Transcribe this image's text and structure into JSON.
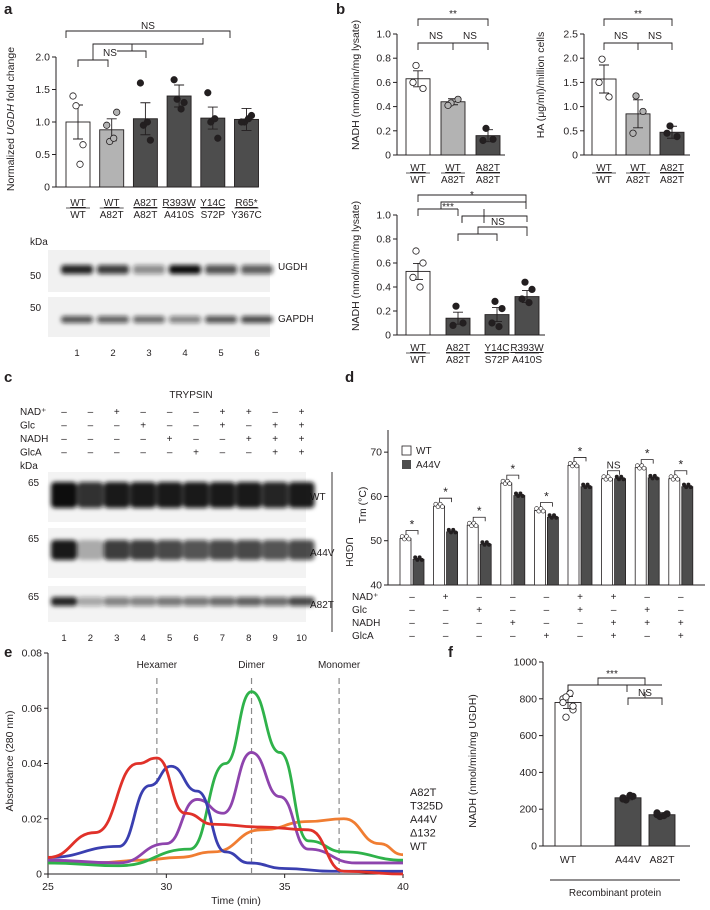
{
  "panel_labels": {
    "a": "a",
    "b": "b",
    "c": "c",
    "d": "d",
    "e": "e",
    "f": "f"
  },
  "sig": {
    "ns": "NS",
    "one": "*",
    "two": "**",
    "three": "***"
  },
  "colors": {
    "white_bar": "#ffffff",
    "wt_a82t_bar": "#b3b3b3",
    "dark_bar": "#4d4d4d",
    "A82T": "#f07d32",
    "T325D": "#2fb24a",
    "A44V": "#8e44ad",
    "delta132": "#3a3fb0",
    "WT": "#e03129"
  },
  "panel_a": {
    "ylabel_pre": "Normalized ",
    "ylabel_gene": "UGDH",
    "ylabel_post": " fold change",
    "yticks": [
      "0",
      "0.5",
      "1.0",
      "1.5",
      "2.0"
    ],
    "genotypes": [
      [
        "WT",
        "WT"
      ],
      [
        "WT",
        "A82T"
      ],
      [
        "A82T",
        "A82T"
      ],
      [
        "R393W",
        "A410S"
      ],
      [
        "Y14C",
        "S72P"
      ],
      [
        "R65*",
        "Y367C"
      ]
    ],
    "blot": {
      "kda": "kDa",
      "marker_top": "50",
      "marker_bottom": "50",
      "protein_top": "UGDH",
      "protein_bottom": "GAPDH",
      "lanes": [
        "1",
        "2",
        "3",
        "4",
        "5",
        "6"
      ]
    }
  },
  "panel_b": {
    "top_left": {
      "ylabel": "NADH (nmol/min/mg lysate)",
      "yticks": [
        "0",
        "0.2",
        "0.4",
        "0.6",
        "0.8",
        "1.0"
      ],
      "genotypes": [
        [
          "WT",
          "WT"
        ],
        [
          "WT",
          "A82T"
        ],
        [
          "A82T",
          "A82T"
        ]
      ]
    },
    "top_right": {
      "ylabel": "HA (μg/ml)/million cells",
      "yticks": [
        "0",
        "0.5",
        "1.0",
        "1.5",
        "2.0",
        "2.5"
      ],
      "genotypes": [
        [
          "WT",
          "WT"
        ],
        [
          "WT",
          "A82T"
        ],
        [
          "A82T",
          "A82T"
        ]
      ]
    },
    "bottom": {
      "ylabel": "NADH (nmol/min/mg lysate)",
      "yticks": [
        "0",
        "0.2",
        "0.4",
        "0.6",
        "0.8",
        "1.0"
      ],
      "genotypes": [
        [
          "WT",
          "WT"
        ],
        [
          "A82T",
          "A82T"
        ],
        [
          "Y14C",
          "S72P"
        ],
        [
          "R393W",
          "A410S"
        ]
      ]
    }
  },
  "panel_c": {
    "title": "TRYPSIN",
    "rows": [
      "NAD⁺",
      "Glc",
      "NADH",
      "GlcA"
    ],
    "signs": [
      [
        "–",
        "–",
        "+",
        "–",
        "–",
        "–",
        "+",
        "+",
        "–",
        "+"
      ],
      [
        "–",
        "–",
        "–",
        "+",
        "–",
        "–",
        "+",
        "–",
        "+",
        "+"
      ],
      [
        "–",
        "–",
        "–",
        "–",
        "+",
        "–",
        "–",
        "+",
        "+",
        "+"
      ],
      [
        "–",
        "–",
        "–",
        "–",
        "–",
        "+",
        "–",
        "–",
        "+",
        "+"
      ]
    ],
    "kda": "kDa",
    "marker": "65",
    "blots": [
      "WT",
      "A44V",
      "A82T"
    ],
    "side_label": "UGDH",
    "lanes": [
      "1",
      "2",
      "3",
      "4",
      "5",
      "6",
      "7",
      "8",
      "9",
      "10"
    ]
  },
  "panel_d": {
    "ylabel": "Tm (°C)",
    "yticks": [
      "40",
      "50",
      "60",
      "70"
    ],
    "legend": [
      "WT",
      "A44V"
    ],
    "rows": [
      "NAD⁺",
      "Glc",
      "NADH",
      "GlcA"
    ],
    "signs": [
      [
        "–",
        "+",
        "–",
        "–",
        "–",
        "+",
        "+",
        "–",
        "–"
      ],
      [
        "–",
        "–",
        "+",
        "–",
        "–",
        "+",
        "–",
        "+",
        "–"
      ],
      [
        "–",
        "–",
        "–",
        "+",
        "–",
        "–",
        "+",
        "+",
        "+"
      ],
      [
        "–",
        "–",
        "–",
        "–",
        "+",
        "–",
        "+",
        "–",
        "+"
      ]
    ],
    "sig": [
      "*",
      "*",
      "*",
      "*",
      "*",
      "*",
      "NS",
      "*",
      "*"
    ]
  },
  "panel_e": {
    "ylabel": "Absorbance (280 nm)",
    "xlabel": "Time (min)",
    "xticks": [
      "25",
      "30",
      "35",
      "40"
    ],
    "yticks": [
      "0",
      "0.02",
      "0.04",
      "0.06",
      "0.08"
    ],
    "markers": [
      "Hexamer",
      "Dimer",
      "Monomer"
    ],
    "legend": [
      "A82T",
      "T325D",
      "A44V",
      "Δ132",
      "WT"
    ]
  },
  "panel_f": {
    "ylabel": "NADH (nmol/min/mg UGDH)",
    "yticks": [
      "0",
      "200",
      "400",
      "600",
      "800",
      "1000"
    ],
    "categories": [
      "WT",
      "A44V",
      "A82T"
    ],
    "group_label": "Recombinant protein"
  },
  "chart_data": [
    {
      "panel": "a",
      "type": "bar",
      "categories": [
        "WT/WT",
        "WT/A82T",
        "A82T/A82T",
        "R393W/A410S",
        "Y14C/S72P",
        "R65*/Y367C"
      ],
      "values": [
        1.0,
        0.88,
        1.05,
        1.4,
        1.06,
        1.04
      ],
      "ylim": [
        0,
        2.0
      ]
    },
    {
      "panel": "b-top-left",
      "type": "bar",
      "categories": [
        "WT/WT",
        "WT/A82T",
        "A82T/A82T"
      ],
      "values": [
        0.63,
        0.44,
        0.16
      ],
      "ylim": [
        0,
        1.0
      ]
    },
    {
      "panel": "b-top-right",
      "type": "bar",
      "categories": [
        "WT/WT",
        "WT/A82T",
        "A82T/A82T"
      ],
      "values": [
        1.57,
        0.85,
        0.47
      ],
      "ylim": [
        0,
        2.5
      ]
    },
    {
      "panel": "b-bottom",
      "type": "bar",
      "categories": [
        "WT/WT",
        "A82T/A82T",
        "Y14C/S72P",
        "R393W/A410S"
      ],
      "values": [
        0.53,
        0.14,
        0.17,
        0.32
      ],
      "ylim": [
        0,
        1.0
      ]
    },
    {
      "panel": "d",
      "type": "bar",
      "series": [
        {
          "name": "WT",
          "values": [
            50.5,
            57.8,
            53.5,
            63.0,
            56.8,
            67.0,
            64.0,
            66.5,
            64.0
          ]
        },
        {
          "name": "A44V",
          "values": [
            45.8,
            52.0,
            49.2,
            60.2,
            55.3,
            62.2,
            64.0,
            64.2,
            62.2
          ]
        }
      ],
      "ylim": [
        40,
        75
      ]
    },
    {
      "panel": "e",
      "type": "line",
      "xlim": [
        25,
        40
      ],
      "ylim": [
        0,
        0.08
      ],
      "series": [
        {
          "name": "A82T",
          "x": [
            25,
            27,
            29,
            30.5,
            32,
            34,
            36,
            37.5,
            39,
            40
          ],
          "y": [
            0.004,
            0.004,
            0.005,
            0.006,
            0.008,
            0.016,
            0.019,
            0.02,
            0.011,
            0.007
          ]
        },
        {
          "name": "T325D",
          "x": [
            25,
            28,
            31,
            32.5,
            33.6,
            34.8,
            36,
            37.5,
            40
          ],
          "y": [
            0.004,
            0.003,
            0.009,
            0.04,
            0.066,
            0.044,
            0.012,
            0.008,
            0.005
          ]
        },
        {
          "name": "A44V",
          "x": [
            25,
            28,
            30,
            31.3,
            32.4,
            33.6,
            34.8,
            36,
            38,
            40
          ],
          "y": [
            0.005,
            0.004,
            0.011,
            0.027,
            0.022,
            0.044,
            0.028,
            0.009,
            0.004,
            0.004
          ]
        },
        {
          "name": "Δ132",
          "x": [
            25,
            28,
            29.3,
            30.2,
            31.3,
            32.5,
            33.5,
            35,
            37,
            40
          ],
          "y": [
            0.006,
            0.01,
            0.032,
            0.039,
            0.03,
            0.008,
            0.004,
            0.002,
            0.001,
            0.001
          ]
        },
        {
          "name": "WT",
          "x": [
            25,
            27,
            28.8,
            29.6,
            30.8,
            32,
            34,
            36,
            37.5,
            40
          ],
          "y": [
            0.006,
            0.015,
            0.04,
            0.042,
            0.022,
            0.018,
            0.017,
            0.016,
            0.001,
            0.0
          ]
        }
      ]
    },
    {
      "panel": "f",
      "type": "bar",
      "categories": [
        "WT",
        "A44V",
        "A82T"
      ],
      "values": [
        780,
        262,
        170
      ],
      "ylim": [
        0,
        1000
      ]
    }
  ]
}
